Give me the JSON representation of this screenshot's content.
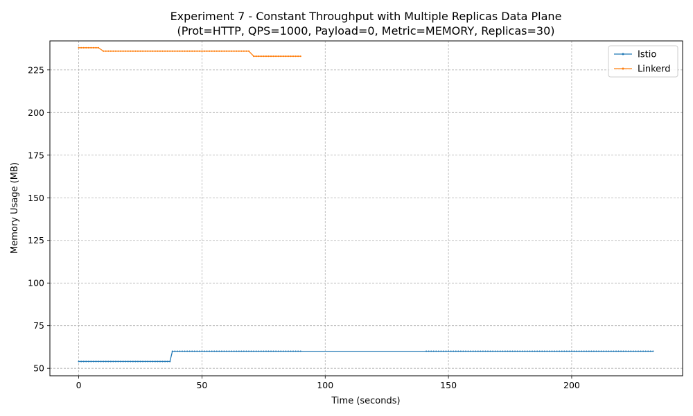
{
  "chart_data": {
    "type": "line",
    "title": "Experiment 7 - Constant Throughput with Multiple Replicas Data Plane",
    "subtitle": "(Prot=HTTP, QPS=1000, Payload=0, Metric=MEMORY, Replicas=30)",
    "xlabel": "Time (seconds)",
    "ylabel": "Memory Usage (MB)",
    "xlim": [
      -11.7,
      245
    ],
    "ylim": [
      45.6,
      242
    ],
    "xticks": [
      0,
      50,
      100,
      150,
      200
    ],
    "yticks": [
      50,
      75,
      100,
      125,
      150,
      175,
      200,
      225
    ],
    "grid": true,
    "legend_position": "top-right",
    "series": [
      {
        "name": "Istio",
        "color": "#1f77b4",
        "segments": [
          {
            "x_start": 0,
            "x_end": 37,
            "step": 1,
            "y": 54
          },
          {
            "x_start": 38,
            "x_end": 90,
            "step": 1,
            "y": 60
          },
          {
            "x_start": 141,
            "x_end": 233,
            "step": 1,
            "y": 60
          }
        ]
      },
      {
        "name": "Linkerd",
        "color": "#ff7f0e",
        "segments": [
          {
            "x_start": 0,
            "x_end": 8,
            "step": 1,
            "y": 238
          },
          {
            "x_start": 10,
            "x_end": 69,
            "step": 1,
            "y": 236
          },
          {
            "x_start": 71,
            "x_end": 90,
            "step": 1,
            "y": 233
          }
        ]
      }
    ]
  }
}
